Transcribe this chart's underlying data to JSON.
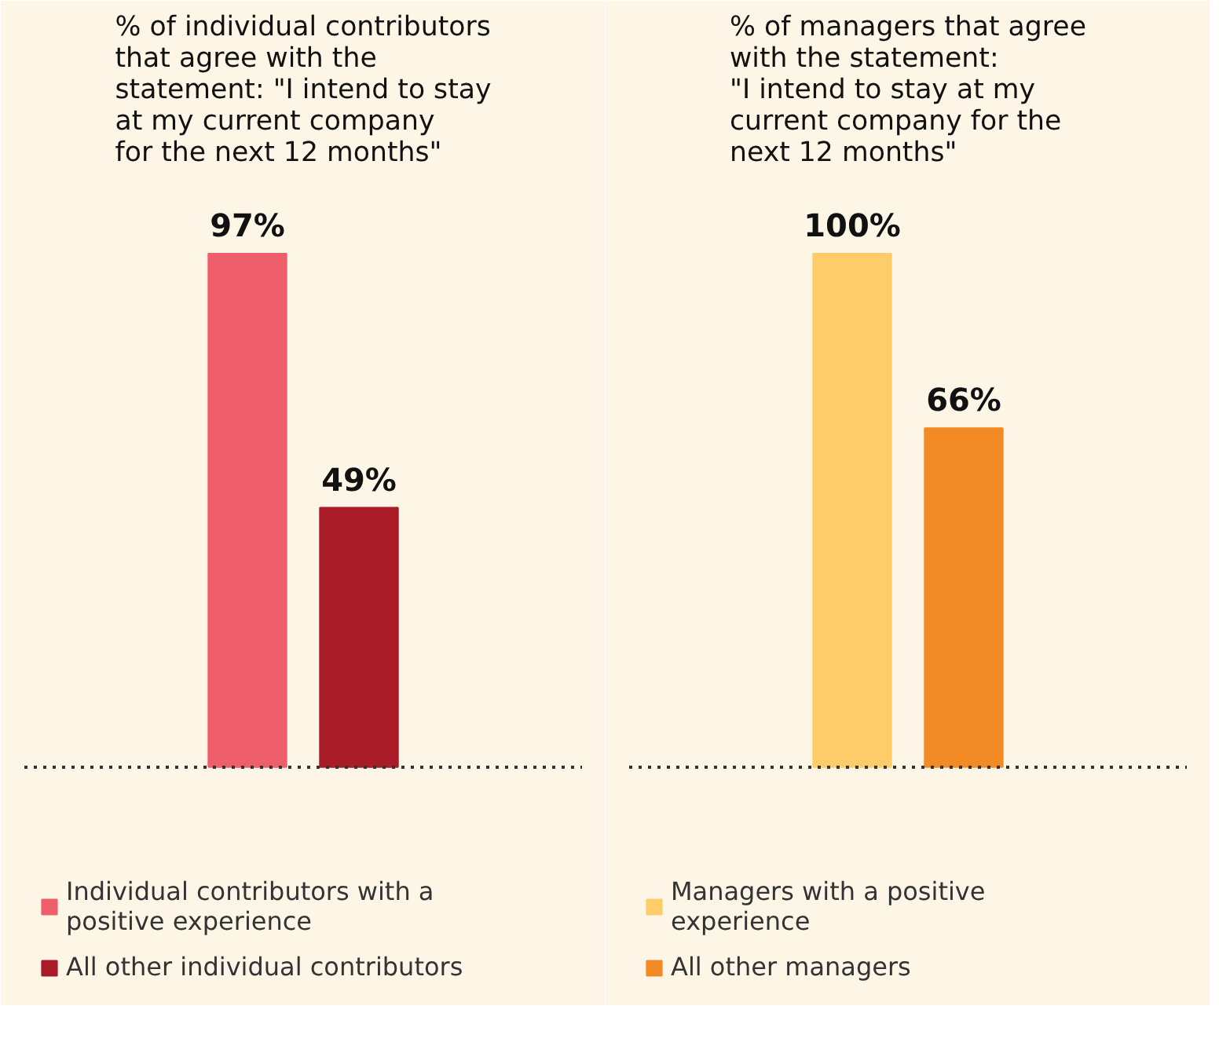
{
  "chart_data": [
    {
      "type": "bar",
      "title": "% of individual contributors\nthat agree with the\nstatement: \"I intend to stay\nat my current company\nfor the next 12 months\"",
      "categories": [
        null
      ],
      "series": [
        {
          "name": "Individual contributors with a positive experience",
          "color": "#ee5f6b",
          "values": [
            97
          ],
          "value_labels": [
            "97%"
          ]
        },
        {
          "name": "All other individual contributors",
          "color": "#a81b27",
          "values": [
            49
          ],
          "value_labels": [
            "49%"
          ]
        }
      ],
      "legend": "bottom",
      "grid": false
    },
    {
      "type": "bar",
      "title": "% of managers that agree\nwith the statement:\n\"I intend to stay at my\ncurrent company for the\nnext 12 months\"",
      "categories": [
        null
      ],
      "series": [
        {
          "name": "Managers with a positive experience",
          "color": "#fecd6a",
          "values": [
            100
          ],
          "value_labels": [
            "100%"
          ]
        },
        {
          "name": "All other managers",
          "color": "#f28a25",
          "values": [
            66
          ],
          "value_labels": [
            "66%"
          ]
        }
      ],
      "legend": "bottom",
      "grid": false
    }
  ]
}
